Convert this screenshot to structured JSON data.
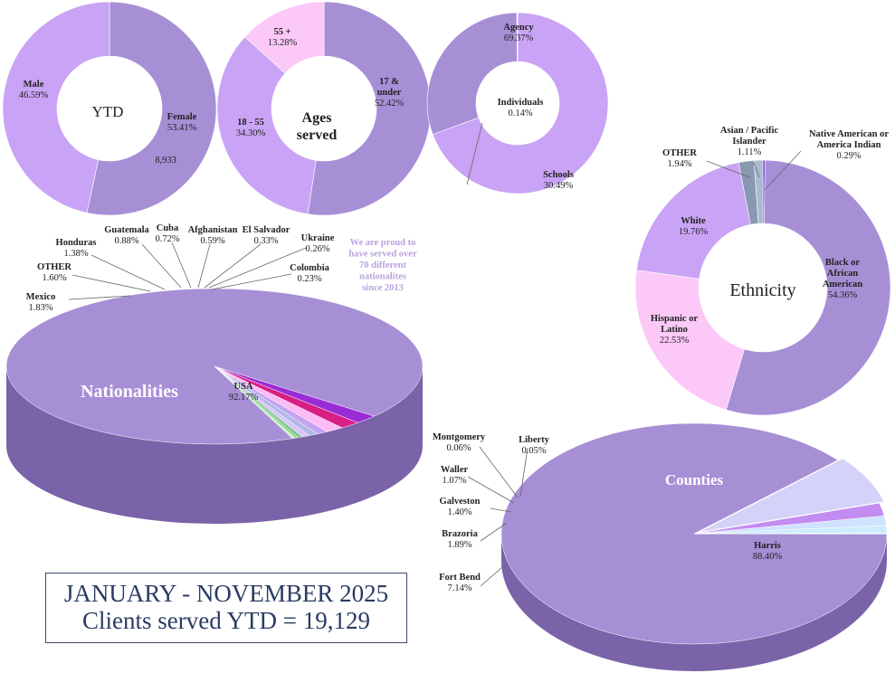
{
  "colors": {
    "main_purple": "#a78fd6",
    "light_purple": "#c9a3f5",
    "pale_pink": "#fbc8f7",
    "dark_side": "#7a63a8",
    "steel_blue": "#8898b0",
    "navy_text": "#2a3b63"
  },
  "chart_data": [
    {
      "type": "pie",
      "variant": "donut",
      "center_label": "YTD",
      "slices": [
        {
          "name": "Female",
          "value": 53.41,
          "label": "53.41%"
        },
        {
          "name": "Male",
          "value": 46.59,
          "label": "46.59%"
        }
      ],
      "annotation": "8,933"
    },
    {
      "type": "pie",
      "variant": "donut",
      "center_label": [
        "Ages",
        "served"
      ],
      "slices": [
        {
          "name": [
            "17 &",
            "under"
          ],
          "value": 52.42,
          "label": "52.42%"
        },
        {
          "name": "18 - 55",
          "value": 34.3,
          "label": "34.30%"
        },
        {
          "name": "55 +",
          "value": 13.28,
          "label": "13.28%"
        }
      ]
    },
    {
      "type": "pie",
      "variant": "donut",
      "slices": [
        {
          "name": "Agency",
          "value": 69.37,
          "label": "69.37%"
        },
        {
          "name": "Schools",
          "value": 30.49,
          "label": "30.49%"
        },
        {
          "name": "Individuals",
          "value": 0.14,
          "label": "0.14%"
        }
      ]
    },
    {
      "type": "pie",
      "variant": "donut",
      "center_label": "Ethnicity",
      "slices": [
        {
          "name": [
            "Native American or",
            "America Indian"
          ],
          "value": 0.29,
          "label": "0.29%"
        },
        {
          "name": [
            "Black or",
            "African",
            "American"
          ],
          "value": 54.36,
          "label": "54.36%"
        },
        {
          "name": [
            "Hispanic or",
            "Latino"
          ],
          "value": 22.53,
          "label": "22.53%"
        },
        {
          "name": "White",
          "value": 19.76,
          "label": "19.76%"
        },
        {
          "name": "OTHER",
          "value": 1.94,
          "label": "1.94%"
        },
        {
          "name": [
            "Asian / Pacific",
            "Islander"
          ],
          "value": 1.11,
          "label": "1.11%"
        }
      ]
    },
    {
      "type": "pie",
      "variant": "3d",
      "center_label": "Nationalities",
      "slices": [
        {
          "name": "USA",
          "value": 92.17,
          "label": "92.17%"
        },
        {
          "name": "Mexico",
          "value": 1.83,
          "label": "1.83%"
        },
        {
          "name": "OTHER",
          "value": 1.6,
          "label": "1.60%"
        },
        {
          "name": "Honduras",
          "value": 1.38,
          "label": "1.38%"
        },
        {
          "name": "Guatemala",
          "value": 0.88,
          "label": "0.88%"
        },
        {
          "name": "Cuba",
          "value": 0.72,
          "label": "0.72%"
        },
        {
          "name": "Afghanistan",
          "value": 0.59,
          "label": "0.59%"
        },
        {
          "name": "El Salvador",
          "value": 0.33,
          "label": "0.33%"
        },
        {
          "name": "Ukraine",
          "value": 0.26,
          "label": "0.26%"
        },
        {
          "name": "Colombia",
          "value": 0.23,
          "label": "0.23%"
        }
      ],
      "note": [
        "We are proud to",
        "have served over",
        "70 different",
        "nationalites",
        "since 2013"
      ]
    },
    {
      "type": "pie",
      "variant": "3d",
      "center_label": "Counties",
      "slices": [
        {
          "name": "Harris",
          "value": 88.4,
          "label": "88.40%"
        },
        {
          "name": "Fort Bend",
          "value": 7.14,
          "label": "7.14%"
        },
        {
          "name": "Brazoria",
          "value": 1.89,
          "label": "1.89%"
        },
        {
          "name": "Galveston",
          "value": 1.4,
          "label": "1.40%"
        },
        {
          "name": "Waller",
          "value": 1.07,
          "label": "1.07%"
        },
        {
          "name": "Montgomery",
          "value": 0.06,
          "label": "0.06%"
        },
        {
          "name": "Liberty",
          "value": 0.05,
          "label": "0.05%"
        }
      ]
    }
  ],
  "summary": {
    "line1": "JANUARY - NOVEMBER 2025",
    "line2": "Clients served YTD = 19,129"
  }
}
